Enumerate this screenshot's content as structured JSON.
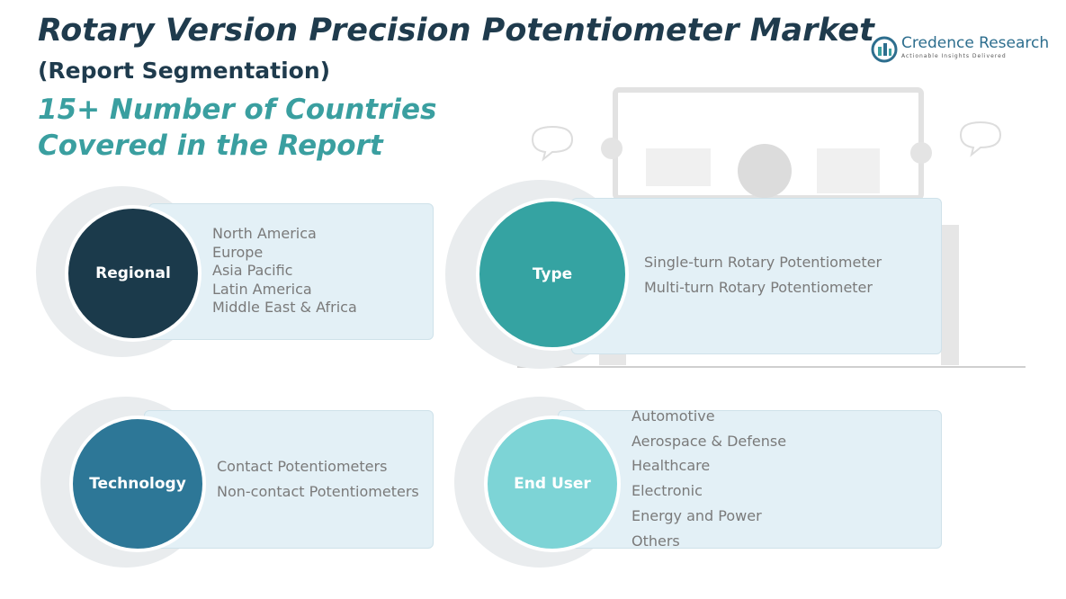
{
  "header": {
    "title": "Rotary Version Precision Potentiometer Market",
    "subtitle": "(Report Segmentation)",
    "highlight": [
      "15+ Number of Countries",
      "Covered in the Report"
    ]
  },
  "logo": {
    "name": "Credence Research",
    "tagline": "Actionable Insights Delivered"
  },
  "segments": [
    {
      "label": "Regional",
      "items": [
        "North America",
        "Europe",
        "Asia Pacific",
        "Latin America",
        "Middle East & Africa"
      ]
    },
    {
      "label": "Type",
      "items": [
        "Single-turn Rotary Potentiometer",
        "Multi-turn Rotary Potentiometer"
      ]
    },
    {
      "label": "Technology",
      "items": [
        "Contact Potentiometers",
        "Non-contact Potentiometers"
      ]
    },
    {
      "label": "End User",
      "items": [
        "Automotive",
        "Aerospace & Defense",
        "Healthcare",
        "Electronic",
        "Energy and Power",
        "Others"
      ]
    }
  ]
}
